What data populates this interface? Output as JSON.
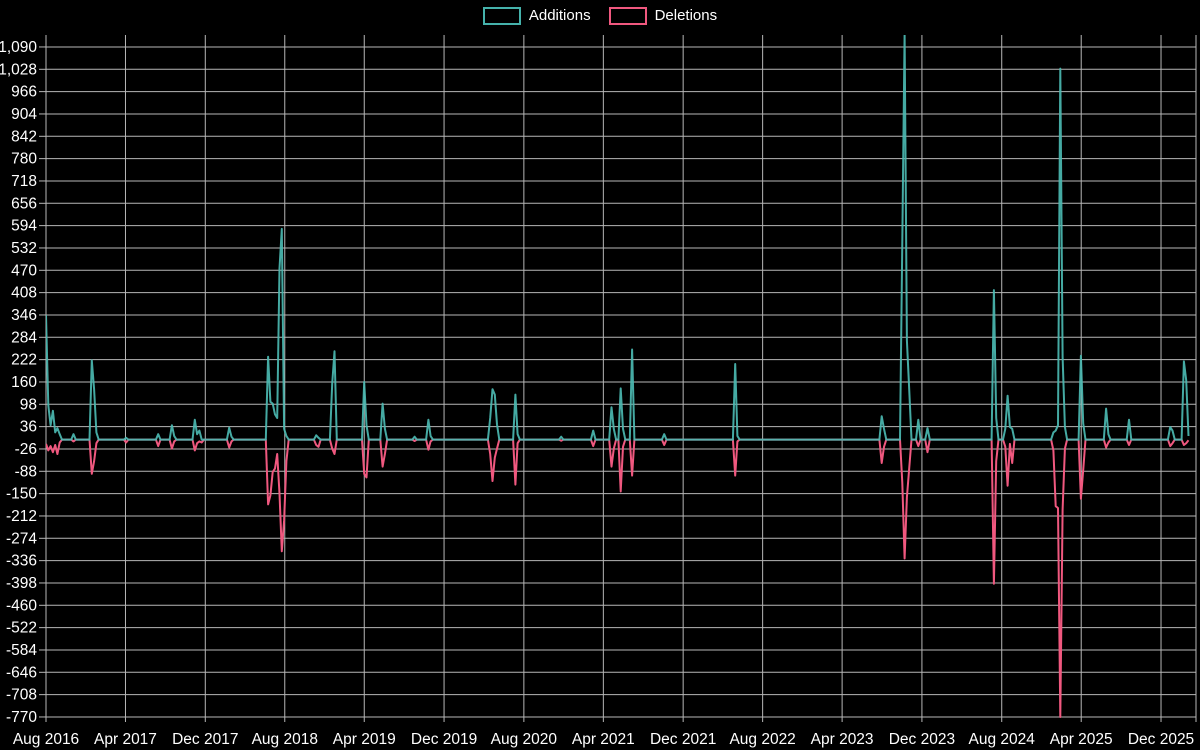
{
  "page": {
    "background": "#000000"
  },
  "legend": {
    "items": [
      {
        "label": "Additions",
        "color": "#45b2ab"
      },
      {
        "label": "Deletions",
        "color": "#f0587f"
      }
    ]
  },
  "chart_data": {
    "type": "line",
    "title": "",
    "xlabel": "",
    "ylabel": "",
    "legend_position": "top-center",
    "grid": true,
    "background": "#000000",
    "grid_color": "#d8d8d8",
    "series_colors": {
      "additions": "#4bb8b1",
      "deletions": "#f0587f"
    },
    "x_ticks": [
      "Aug 2016",
      "Apr 2017",
      "Dec 2017",
      "Aug 2018",
      "Apr 2019",
      "Dec 2019",
      "Aug 2020",
      "Apr 2021",
      "Dec 2021",
      "Aug 2022",
      "Apr 2023",
      "Dec 2023",
      "Aug 2024",
      "Apr 2025",
      "Dec 2025"
    ],
    "y_ticks": [
      "1,090",
      "1,028",
      "966",
      "904",
      "842",
      "780",
      "718",
      "656",
      "594",
      "532",
      "470",
      "408",
      "346",
      "284",
      "222",
      "160",
      "98",
      "36",
      "-26",
      "-88",
      "-150",
      "-212",
      "-274",
      "-336",
      "-398",
      "-460",
      "-522",
      "-584",
      "-646",
      "-708",
      "-770"
    ],
    "y_range": [
      -784,
      1123
    ],
    "x_range": [
      "2016-08-01",
      "2026-03-19"
    ],
    "series": [
      {
        "name": "Additions"
      },
      {
        "name": "Deletions"
      }
    ],
    "points_format": [
      "week_start",
      "additions",
      "deletions"
    ],
    "points": [
      [
        "2016-08-01",
        346,
        -12
      ],
      [
        "2016-08-08",
        95,
        -30
      ],
      [
        "2016-08-15",
        40,
        -18
      ],
      [
        "2016-08-22",
        80,
        -35
      ],
      [
        "2016-08-29",
        20,
        -15
      ],
      [
        "2016-09-05",
        32,
        -40
      ],
      [
        "2016-09-12",
        15,
        -8
      ],
      [
        "2016-10-24",
        15,
        -5
      ],
      [
        "2016-12-19",
        220,
        -95
      ],
      [
        "2016-12-26",
        140,
        -60
      ],
      [
        "2017-01-02",
        20,
        -10
      ],
      [
        "2017-04-03",
        5,
        -8
      ],
      [
        "2017-07-10",
        15,
        -18
      ],
      [
        "2017-08-21",
        40,
        -25
      ],
      [
        "2017-08-28",
        10,
        -5
      ],
      [
        "2017-10-30",
        55,
        -30
      ],
      [
        "2017-11-06",
        15,
        -10
      ],
      [
        "2017-11-13",
        25,
        -5
      ],
      [
        "2017-11-20",
        0,
        -8
      ],
      [
        "2018-02-12",
        33,
        -22
      ],
      [
        "2018-02-19",
        8,
        -5
      ],
      [
        "2018-06-11",
        230,
        -180
      ],
      [
        "2018-06-18",
        105,
        -155
      ],
      [
        "2018-06-25",
        100,
        -90
      ],
      [
        "2018-07-02",
        70,
        -80
      ],
      [
        "2018-07-09",
        60,
        -40
      ],
      [
        "2018-07-16",
        475,
        -150
      ],
      [
        "2018-07-23",
        585,
        -310
      ],
      [
        "2018-07-30",
        30,
        -225
      ],
      [
        "2018-08-06",
        10,
        -60
      ],
      [
        "2018-11-05",
        12,
        -15
      ],
      [
        "2018-11-12",
        5,
        -20
      ],
      [
        "2018-12-24",
        155,
        -25
      ],
      [
        "2018-12-31",
        245,
        -40
      ],
      [
        "2019-04-01",
        160,
        -95
      ],
      [
        "2019-04-08",
        40,
        -105
      ],
      [
        "2019-05-27",
        100,
        -75
      ],
      [
        "2019-06-03",
        30,
        -40
      ],
      [
        "2019-09-02",
        8,
        -4
      ],
      [
        "2019-10-14",
        55,
        -28
      ],
      [
        "2019-10-21",
        10,
        -5
      ],
      [
        "2020-04-20",
        60,
        -40
      ],
      [
        "2020-04-27",
        140,
        -115
      ],
      [
        "2020-05-04",
        125,
        -50
      ],
      [
        "2020-05-11",
        42,
        -25
      ],
      [
        "2020-07-06",
        125,
        -125
      ],
      [
        "2020-07-13",
        15,
        -10
      ],
      [
        "2020-11-23",
        8,
        -3
      ],
      [
        "2021-03-01",
        25,
        -18
      ],
      [
        "2021-04-26",
        90,
        -75
      ],
      [
        "2021-05-03",
        30,
        -25
      ],
      [
        "2021-05-24",
        142,
        -144
      ],
      [
        "2021-05-31",
        30,
        -20
      ],
      [
        "2021-06-28",
        250,
        -100
      ],
      [
        "2021-10-04",
        15,
        -15
      ],
      [
        "2022-05-09",
        210,
        -100
      ],
      [
        "2022-05-16",
        10,
        -5
      ],
      [
        "2023-07-31",
        65,
        -65
      ],
      [
        "2023-08-07",
        30,
        -20
      ],
      [
        "2023-10-02",
        550,
        -120
      ],
      [
        "2023-10-09",
        1125,
        -330
      ],
      [
        "2023-10-16",
        275,
        -160
      ],
      [
        "2023-10-23",
        140,
        -80
      ],
      [
        "2023-11-20",
        55,
        -18
      ],
      [
        "2023-12-18",
        32,
        -35
      ],
      [
        "2024-07-08",
        415,
        -400
      ],
      [
        "2024-07-15",
        60,
        -60
      ],
      [
        "2024-08-12",
        30,
        -20
      ],
      [
        "2024-08-19",
        122,
        -128
      ],
      [
        "2024-08-26",
        35,
        -12
      ],
      [
        "2024-09-02",
        30,
        -65
      ],
      [
        "2025-01-06",
        20,
        -30
      ],
      [
        "2025-01-13",
        25,
        -185
      ],
      [
        "2025-01-20",
        40,
        -190
      ],
      [
        "2025-01-27",
        1030,
        -770
      ],
      [
        "2025-02-03",
        230,
        -195
      ],
      [
        "2025-02-10",
        35,
        -25
      ],
      [
        "2025-03-31",
        233,
        -164
      ],
      [
        "2025-04-07",
        45,
        -85
      ],
      [
        "2025-06-16",
        86,
        -22
      ],
      [
        "2025-06-23",
        15,
        -8
      ],
      [
        "2025-08-25",
        55,
        -15
      ],
      [
        "2025-12-29",
        35,
        -18
      ],
      [
        "2026-01-05",
        25,
        -10
      ],
      [
        "2026-02-09",
        217,
        -15
      ],
      [
        "2026-02-16",
        165,
        -10
      ],
      [
        "2026-02-23",
        10,
        -2
      ]
    ]
  }
}
